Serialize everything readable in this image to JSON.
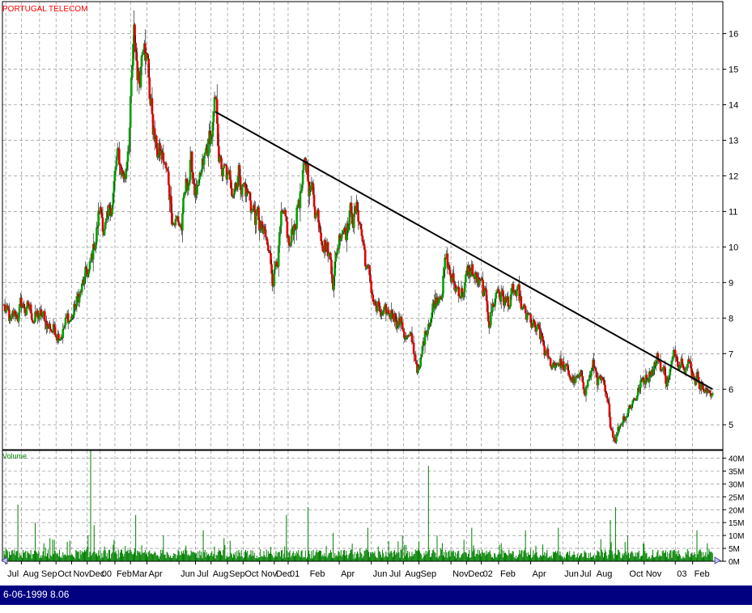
{
  "title": "PORTUGAL TELECOM",
  "status": "6-06-1999 8.06",
  "colors": {
    "up_candle": "#00a000",
    "down_candle": "#e00000",
    "volume": "#008000",
    "trendline": "#000000",
    "grid": "#808080",
    "status_bar": "#000080",
    "title_text": "#ff0000",
    "volume_label": "#008000"
  },
  "chart_data": [
    {
      "type": "candlestick",
      "title": "PORTUGAL TELECOM",
      "ylim": [
        4.3,
        16.9
      ],
      "y_ticks": [
        5,
        6,
        7,
        8,
        9,
        10,
        11,
        12,
        13,
        14,
        15,
        16
      ],
      "grid": true,
      "axis_position": "right",
      "x_ticks": [
        {
          "label": "Jul",
          "index": 2
        },
        {
          "label": "Aug",
          "index": 20
        },
        {
          "label": "Sep",
          "index": 41
        },
        {
          "label": "Oct",
          "index": 60
        },
        {
          "label": "Nov",
          "index": 78
        },
        {
          "label": "Dec",
          "index": 96
        },
        {
          "label": "00",
          "index": 111
        },
        {
          "label": "Feb",
          "index": 128
        },
        {
          "label": "Mar",
          "index": 146
        },
        {
          "label": "Apr",
          "index": 165
        },
        {
          "label": "Jun",
          "index": 202
        },
        {
          "label": "Jul",
          "index": 221
        },
        {
          "label": "Aug",
          "index": 239
        },
        {
          "label": "Sep",
          "index": 258
        },
        {
          "label": "Oct",
          "index": 276
        },
        {
          "label": "Nov",
          "index": 295
        },
        {
          "label": "Dec",
          "index": 312
        },
        {
          "label": "01",
          "index": 328
        },
        {
          "label": "Feb",
          "index": 351
        },
        {
          "label": "Apr",
          "index": 387
        },
        {
          "label": "Jun",
          "index": 424
        },
        {
          "label": "Jul",
          "index": 443
        },
        {
          "label": "Aug",
          "index": 461
        },
        {
          "label": "Sep",
          "index": 479
        },
        {
          "label": "Nov",
          "index": 516
        },
        {
          "label": "Dec",
          "index": 534
        },
        {
          "label": "02",
          "index": 551
        },
        {
          "label": "Feb",
          "index": 571
        },
        {
          "label": "Apr",
          "index": 608
        },
        {
          "label": "Jun",
          "index": 645
        },
        {
          "label": "Jul",
          "index": 663
        },
        {
          "label": "Aug",
          "index": 682
        },
        {
          "label": "Oct",
          "index": 720
        },
        {
          "label": "Nov",
          "index": 739
        },
        {
          "label": "03",
          "index": 775
        },
        {
          "label": "Feb",
          "index": 795
        }
      ],
      "price_keypoints": [
        [
          0,
          8.3
        ],
        [
          8,
          7.7
        ],
        [
          20,
          8.3
        ],
        [
          40,
          8.0
        ],
        [
          58,
          7.7
        ],
        [
          78,
          8.0
        ],
        [
          90,
          8.8
        ],
        [
          100,
          9.3
        ],
        [
          110,
          11.0
        ],
        [
          120,
          10.4
        ],
        [
          130,
          12.3
        ],
        [
          140,
          12.0
        ],
        [
          150,
          15.6
        ],
        [
          156,
          14.6
        ],
        [
          162,
          16.8
        ],
        [
          168,
          14.5
        ],
        [
          175,
          12.8
        ],
        [
          185,
          12.3
        ],
        [
          195,
          11.0
        ],
        [
          205,
          10.6
        ],
        [
          215,
          12.3
        ],
        [
          225,
          11.3
        ],
        [
          235,
          12.6
        ],
        [
          244,
          13.7
        ],
        [
          250,
          12.2
        ],
        [
          260,
          11.6
        ],
        [
          270,
          12.3
        ],
        [
          280,
          11.6
        ],
        [
          290,
          10.9
        ],
        [
          300,
          10.2
        ],
        [
          310,
          9.2
        ],
        [
          320,
          10.6
        ],
        [
          330,
          9.8
        ],
        [
          340,
          11.4
        ],
        [
          350,
          12.1
        ],
        [
          360,
          11.2
        ],
        [
          370,
          10.5
        ],
        [
          380,
          9.3
        ],
        [
          390,
          10.8
        ],
        [
          400,
          11.0
        ],
        [
          410,
          10.9
        ],
        [
          420,
          9.2
        ],
        [
          430,
          8.2
        ],
        [
          440,
          7.8
        ],
        [
          450,
          8.3
        ],
        [
          460,
          7.8
        ],
        [
          470,
          7.2
        ],
        [
          480,
          6.5
        ],
        [
          490,
          8.1
        ],
        [
          500,
          8.7
        ],
        [
          510,
          9.6
        ],
        [
          520,
          8.8
        ],
        [
          530,
          8.9
        ],
        [
          540,
          9.3
        ],
        [
          550,
          8.8
        ],
        [
          560,
          8.0
        ],
        [
          570,
          8.9
        ],
        [
          580,
          8.4
        ],
        [
          590,
          8.6
        ],
        [
          600,
          8.0
        ],
        [
          610,
          7.7
        ],
        [
          620,
          7.3
        ],
        [
          630,
          6.6
        ],
        [
          640,
          6.9
        ],
        [
          650,
          6.4
        ],
        [
          660,
          6.2
        ],
        [
          670,
          6.1
        ],
        [
          680,
          6.6
        ],
        [
          690,
          6.1
        ],
        [
          700,
          5.0
        ],
        [
          705,
          4.7
        ],
        [
          715,
          5.3
        ],
        [
          725,
          5.7
        ],
        [
          735,
          6.1
        ],
        [
          745,
          6.6
        ],
        [
          755,
          6.9
        ],
        [
          765,
          6.3
        ],
        [
          775,
          6.9
        ],
        [
          785,
          7.1
        ],
        [
          795,
          6.5
        ],
        [
          805,
          6.3
        ],
        [
          812,
          5.8
        ],
        [
          818,
          6.0
        ]
      ],
      "annotations": [
        {
          "type": "trendline",
          "from": [
            244,
            13.8
          ],
          "to": [
            818,
            6.0
          ]
        }
      ]
    },
    {
      "type": "bar",
      "title": "Volume",
      "ylim": [
        0,
        43
      ],
      "units": "M",
      "y_ticks": [
        0,
        5,
        10,
        15,
        20,
        25,
        30,
        35,
        40
      ],
      "y_tick_labels": [
        "0M",
        "5M",
        "10M",
        "15M",
        "20M",
        "25M",
        "30M",
        "35M",
        "40M"
      ],
      "base_level": 2.8,
      "spikes": [
        [
          16,
          22
        ],
        [
          36,
          15
        ],
        [
          53,
          9
        ],
        [
          76,
          8
        ],
        [
          97,
          10
        ],
        [
          100,
          43
        ],
        [
          104,
          14
        ],
        [
          152,
          18
        ],
        [
          184,
          10
        ],
        [
          230,
          12
        ],
        [
          254,
          9
        ],
        [
          326,
          18
        ],
        [
          351,
          21
        ],
        [
          380,
          11
        ],
        [
          420,
          13
        ],
        [
          460,
          10
        ],
        [
          490,
          37
        ],
        [
          500,
          10
        ],
        [
          540,
          13
        ],
        [
          602,
          12
        ],
        [
          640,
          13
        ],
        [
          700,
          16
        ],
        [
          706,
          21
        ],
        [
          720,
          10
        ],
        [
          800,
          12
        ],
        [
          812,
          7
        ]
      ]
    }
  ]
}
